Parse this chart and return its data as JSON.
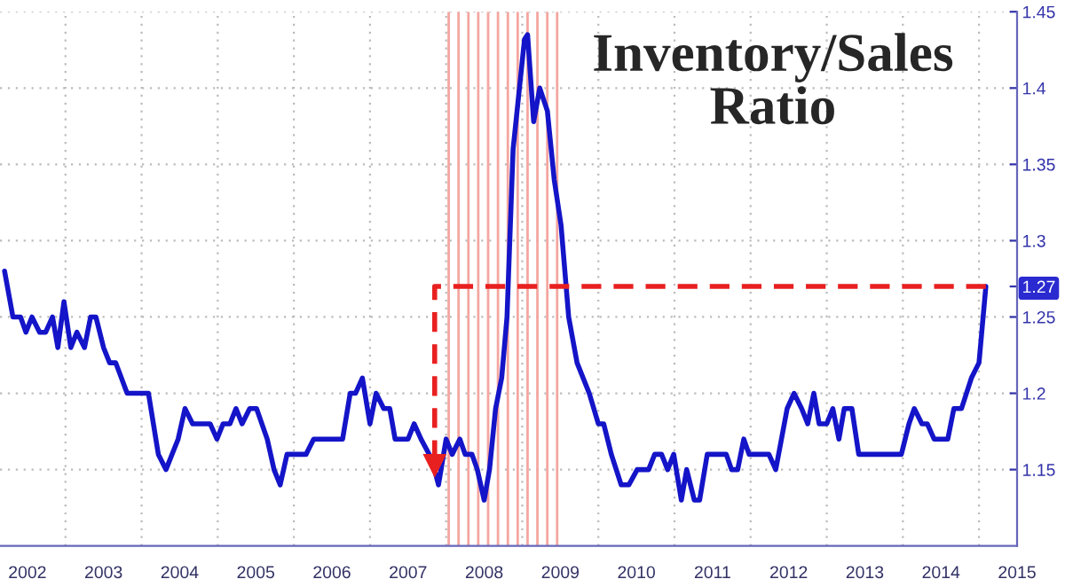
{
  "chart_data": {
    "type": "line",
    "title": "Inventory/Sales\nRatio",
    "xlim": [
      2002.14,
      2015.5
    ],
    "ylim": [
      1.1,
      1.45
    ],
    "xticks": [
      {
        "value": 2002.5,
        "label": "2002"
      },
      {
        "value": 2003.5,
        "label": "2003"
      },
      {
        "value": 2004.5,
        "label": "2004"
      },
      {
        "value": 2005.5,
        "label": "2005"
      },
      {
        "value": 2006.5,
        "label": "2006"
      },
      {
        "value": 2007.5,
        "label": "2007"
      },
      {
        "value": 2008.5,
        "label": "2008"
      },
      {
        "value": 2009.5,
        "label": "2009"
      },
      {
        "value": 2010.5,
        "label": "2010"
      },
      {
        "value": 2011.5,
        "label": "2011"
      },
      {
        "value": 2012.5,
        "label": "2012"
      },
      {
        "value": 2013.5,
        "label": "2013"
      },
      {
        "value": 2014.5,
        "label": "2014"
      },
      {
        "value": 2015.5,
        "label": "2015"
      },
      {
        "value": 2003,
        "label": null
      },
      {
        "value": 2004,
        "label": null
      },
      {
        "value": 2005,
        "label": null
      },
      {
        "value": 2006,
        "label": null
      },
      {
        "value": 2007,
        "label": null
      },
      {
        "value": 2008,
        "label": null
      },
      {
        "value": 2009,
        "label": null
      },
      {
        "value": 2010,
        "label": null
      },
      {
        "value": 2011,
        "label": null
      },
      {
        "value": 2012,
        "label": null
      },
      {
        "value": 2013,
        "label": null
      },
      {
        "value": 2014,
        "label": null
      },
      {
        "value": 2015,
        "label": null
      }
    ],
    "yticks": [
      1.15,
      1.2,
      1.25,
      1.3,
      1.35,
      1.4,
      1.45,
      {
        "value": 1.27,
        "label": "1.27"
      }
    ],
    "grid": true,
    "legend": false,
    "line_style": "solid",
    "marker": "none",
    "bands": [
      {
        "axis": "x",
        "from": 2007.98,
        "to": 2009.51,
        "color": "#f4a6a0"
      }
    ],
    "series": [
      {
        "color": "#1414c8",
        "x": [
          2002.2,
          2002.31,
          2002.41,
          2002.48,
          2002.56,
          2002.66,
          2002.74,
          2002.83,
          2002.9,
          2002.98,
          2003.07,
          2003.15,
          2003.25,
          2003.33,
          2003.4,
          2003.5,
          2003.58,
          2003.66,
          2003.81,
          2004.09,
          2004.22,
          2004.32,
          2004.48,
          2004.57,
          2004.67,
          2004.9,
          2004.99,
          2005.07,
          2005.16,
          2005.24,
          2005.32,
          2005.42,
          2005.51,
          2005.65,
          2005.74,
          2005.82,
          2005.91,
          2006.16,
          2006.26,
          2006.64,
          2006.74,
          2006.81,
          2006.9,
          2007.0,
          2007.08,
          2007.18,
          2007.26,
          2007.33,
          2007.5,
          2007.58,
          2007.67,
          2007.81,
          2007.9,
          2008.0,
          2008.08,
          2008.18,
          2008.25,
          2008.34,
          2008.41,
          2008.5,
          2008.57,
          2008.65,
          2008.73,
          2008.8,
          2008.88,
          2009.03,
          2009.07,
          2009.15,
          2009.23,
          2009.33,
          2009.42,
          2009.51,
          2009.61,
          2009.72,
          2009.88,
          2010.0,
          2010.07,
          2010.17,
          2010.3,
          2010.4,
          2010.51,
          2010.66,
          2010.74,
          2010.83,
          2010.91,
          2010.99,
          2011.09,
          2011.16,
          2011.26,
          2011.33,
          2011.43,
          2011.68,
          2011.75,
          2011.83,
          2011.91,
          2011.98,
          2012.24,
          2012.33,
          2012.48,
          2012.57,
          2012.67,
          2012.75,
          2012.83,
          2012.9,
          2013.0,
          2013.08,
          2013.16,
          2013.23,
          2013.33,
          2013.42,
          2013.98,
          2014.08,
          2014.15,
          2014.25,
          2014.32,
          2014.41,
          2014.59,
          2014.67,
          2014.77,
          2014.9,
          2015.0,
          2015.09
        ],
        "values": [
          1.28,
          1.25,
          1.25,
          1.24,
          1.25,
          1.24,
          1.24,
          1.25,
          1.23,
          1.26,
          1.23,
          1.24,
          1.23,
          1.25,
          1.25,
          1.23,
          1.22,
          1.22,
          1.2,
          1.2,
          1.16,
          1.15,
          1.17,
          1.19,
          1.18,
          1.18,
          1.17,
          1.18,
          1.18,
          1.19,
          1.18,
          1.19,
          1.19,
          1.17,
          1.15,
          1.14,
          1.16,
          1.16,
          1.17,
          1.17,
          1.2,
          1.2,
          1.21,
          1.18,
          1.2,
          1.19,
          1.19,
          1.17,
          1.17,
          1.18,
          1.17,
          1.157,
          1.14,
          1.17,
          1.16,
          1.17,
          1.16,
          1.16,
          1.15,
          1.13,
          1.15,
          1.19,
          1.21,
          1.25,
          1.36,
          1.432,
          1.435,
          1.378,
          1.4,
          1.385,
          1.34,
          1.31,
          1.25,
          1.22,
          1.2,
          1.18,
          1.18,
          1.16,
          1.14,
          1.14,
          1.15,
          1.15,
          1.16,
          1.16,
          1.15,
          1.16,
          1.13,
          1.15,
          1.13,
          1.13,
          1.16,
          1.16,
          1.15,
          1.15,
          1.17,
          1.16,
          1.16,
          1.15,
          1.19,
          1.2,
          1.19,
          1.18,
          1.2,
          1.18,
          1.18,
          1.19,
          1.17,
          1.19,
          1.19,
          1.16,
          1.16,
          1.18,
          1.19,
          1.18,
          1.18,
          1.17,
          1.17,
          1.19,
          1.19,
          1.21,
          1.22,
          1.27
        ]
      },
      {
        "color": "#e82020",
        "line_style": "dashed",
        "x": [
          2015.09,
          2007.85,
          2007.85
        ],
        "values": [
          1.27,
          1.27,
          1.153
        ]
      }
    ]
  }
}
